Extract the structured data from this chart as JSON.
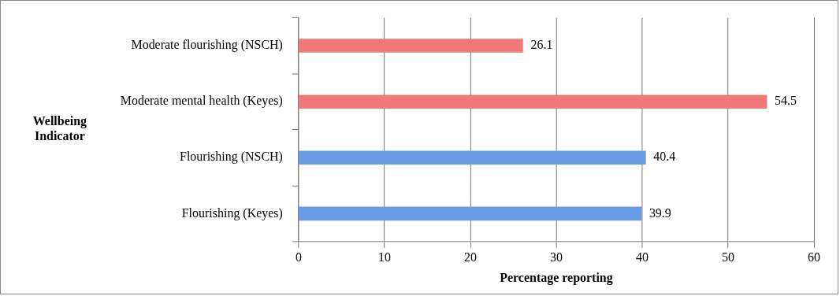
{
  "chart_data": {
    "type": "bar",
    "orientation": "horizontal",
    "categories": [
      "Moderate flourishing (NSCH)",
      "Moderate mental health (Keyes)",
      "Flourishing (NSCH)",
      "Flourishing (Keyes)"
    ],
    "values": [
      26.1,
      54.5,
      40.4,
      39.9
    ],
    "colors": [
      "#f07878",
      "#f07878",
      "#6a9ce6",
      "#6a9ce6"
    ],
    "xlim": [
      0,
      60
    ],
    "xticks": [
      0,
      10,
      20,
      30,
      40,
      50,
      60
    ],
    "grid": "x",
    "data_labels": true,
    "xlabel": "Percentage reporting",
    "ylabel": "Wellbeing Indicator"
  }
}
